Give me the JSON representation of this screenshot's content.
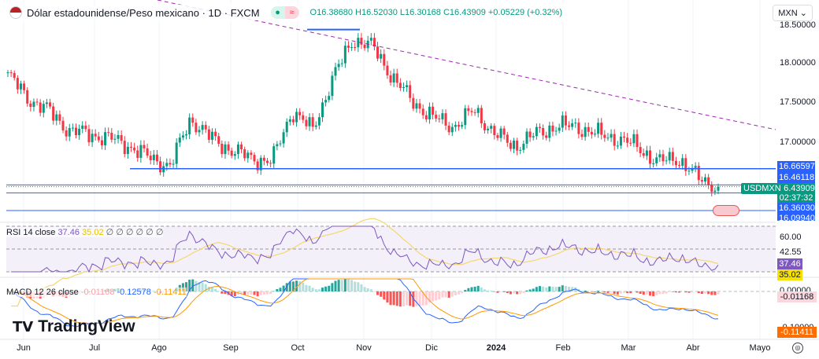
{
  "header": {
    "title": "Dólar estadounidense/Peso mexicano · 1D · FXCM",
    "open": "O16.38680",
    "high": "H16.52030",
    "low": "L16.30168",
    "close": "C16.43909",
    "change": "+0.05229 (+0.32%)",
    "currency": "MXN"
  },
  "price_axis": {
    "labels": [
      "18.50000",
      "18.00000",
      "17.50000",
      "17.00000"
    ],
    "tags": [
      {
        "text": "16.66597",
        "color": "#2962ff"
      },
      {
        "text": "16.46118",
        "color": "#2962ff"
      },
      {
        "text": "16.43909",
        "color": "#089981"
      },
      {
        "text": "02:37:32",
        "color": "#089981"
      },
      {
        "text": "16.36030",
        "color": "#2962ff"
      },
      {
        "text": "16.09940",
        "color": "#2962ff"
      }
    ],
    "symbol_tag": "USDMXN"
  },
  "rsi": {
    "label": "RSI 14 close",
    "value": "37.46",
    "ma": "35.02",
    "levels": [
      "60.00",
      "42.55"
    ],
    "ma_color": "#f5d000",
    "line_color": "#7e57c2"
  },
  "macd": {
    "label": "MACD 12 26 close",
    "hist": "-0.01168",
    "macd": "-0.12578",
    "signal": "-0.11411",
    "axis": [
      "0.00000",
      "-0.10000"
    ]
  },
  "xaxis": [
    "Jun",
    "Jul",
    "Ago",
    "Sep",
    "Oct",
    "Nov",
    "Dic",
    "2024",
    "Feb",
    "Mar",
    "Abr",
    "Mayo"
  ],
  "logo": "TradingView",
  "chart_data": {
    "type": "candlestick",
    "note_series": "weekly approximate closes",
    "closes": [
      17.85,
      17.55,
      17.4,
      17.15,
      17.1,
      17.05,
      16.95,
      16.8,
      16.7,
      17.3,
      17.05,
      16.9,
      16.8,
      16.75,
      17.4,
      17.15,
      17.8,
      18.3,
      18.2,
      17.8,
      17.5,
      17.3,
      17.2,
      17.4,
      17.1,
      16.95,
      17.1,
      17.2,
      17.2,
      17.1,
      17.05,
      16.95,
      16.75,
      16.8,
      16.55,
      16.44
    ],
    "levels": [
      16.66597,
      16.46118,
      16.3603,
      16.0994
    ],
    "last": 16.43909,
    "ylim": [
      16.05,
      18.55
    ],
    "trendline": "dashed descending resistance",
    "box_top": 18.42
  }
}
